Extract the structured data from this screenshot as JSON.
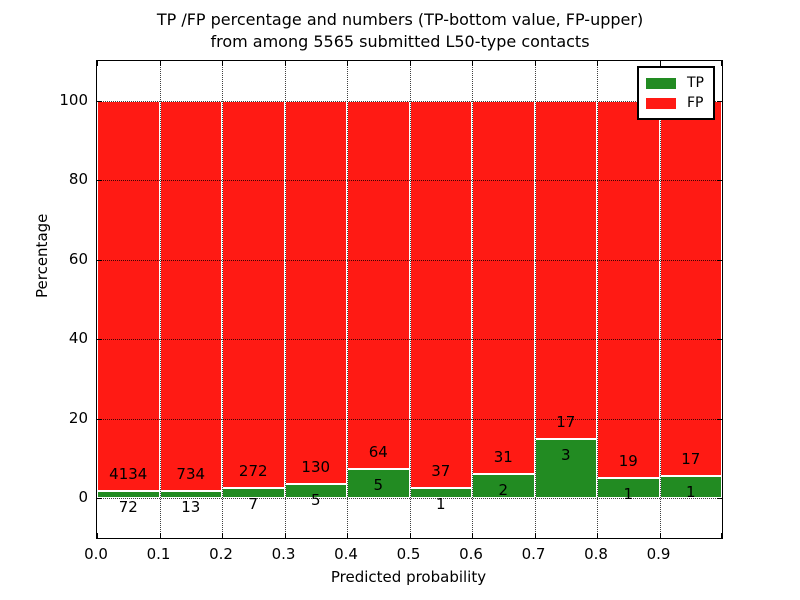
{
  "title": {
    "line1": "TP /FP percentage and numbers (TP-bottom value, FP-upper)",
    "line2": "from among 5565 submitted L50-type contacts"
  },
  "chart_data": {
    "type": "bar",
    "stacked": true,
    "title": "TP /FP percentage and numbers (TP-bottom value, FP-upper)\nfrom among 5565 submitted L50-type contacts",
    "xlabel": "Predicted probability",
    "ylabel": "Percentage",
    "xlim": [
      0.0,
      1.0
    ],
    "ylim": [
      -10,
      110
    ],
    "grid": true,
    "xticks": [
      "0.0",
      "0.1",
      "0.2",
      "0.3",
      "0.4",
      "0.5",
      "0.6",
      "0.7",
      "0.8",
      "0.9"
    ],
    "yticks": [
      "0",
      "20",
      "40",
      "60",
      "80",
      "100"
    ],
    "total_contacts": 5565,
    "legend": {
      "position": "upper right",
      "entries": [
        {
          "label": "TP",
          "color": "#228b22"
        },
        {
          "label": "FP",
          "color": "#ff1a14"
        }
      ]
    },
    "bins": [
      {
        "x_start": 0.0,
        "x_end": 0.1,
        "tp": 72,
        "fp": 4134
      },
      {
        "x_start": 0.1,
        "x_end": 0.2,
        "tp": 13,
        "fp": 734
      },
      {
        "x_start": 0.2,
        "x_end": 0.3,
        "tp": 7,
        "fp": 272
      },
      {
        "x_start": 0.3,
        "x_end": 0.4,
        "tp": 5,
        "fp": 130
      },
      {
        "x_start": 0.4,
        "x_end": 0.5,
        "tp": 5,
        "fp": 64
      },
      {
        "x_start": 0.5,
        "x_end": 0.6,
        "tp": 1,
        "fp": 37
      },
      {
        "x_start": 0.6,
        "x_end": 0.7,
        "tp": 2,
        "fp": 31
      },
      {
        "x_start": 0.7,
        "x_end": 0.8,
        "tp": 3,
        "fp": 17
      },
      {
        "x_start": 0.8,
        "x_end": 0.9,
        "tp": 1,
        "fp": 19
      },
      {
        "x_start": 0.9,
        "x_end": 1.0,
        "tp": 1,
        "fp": 17
      }
    ],
    "colors": {
      "tp": "#228b22",
      "fp": "#ff1a14"
    }
  }
}
